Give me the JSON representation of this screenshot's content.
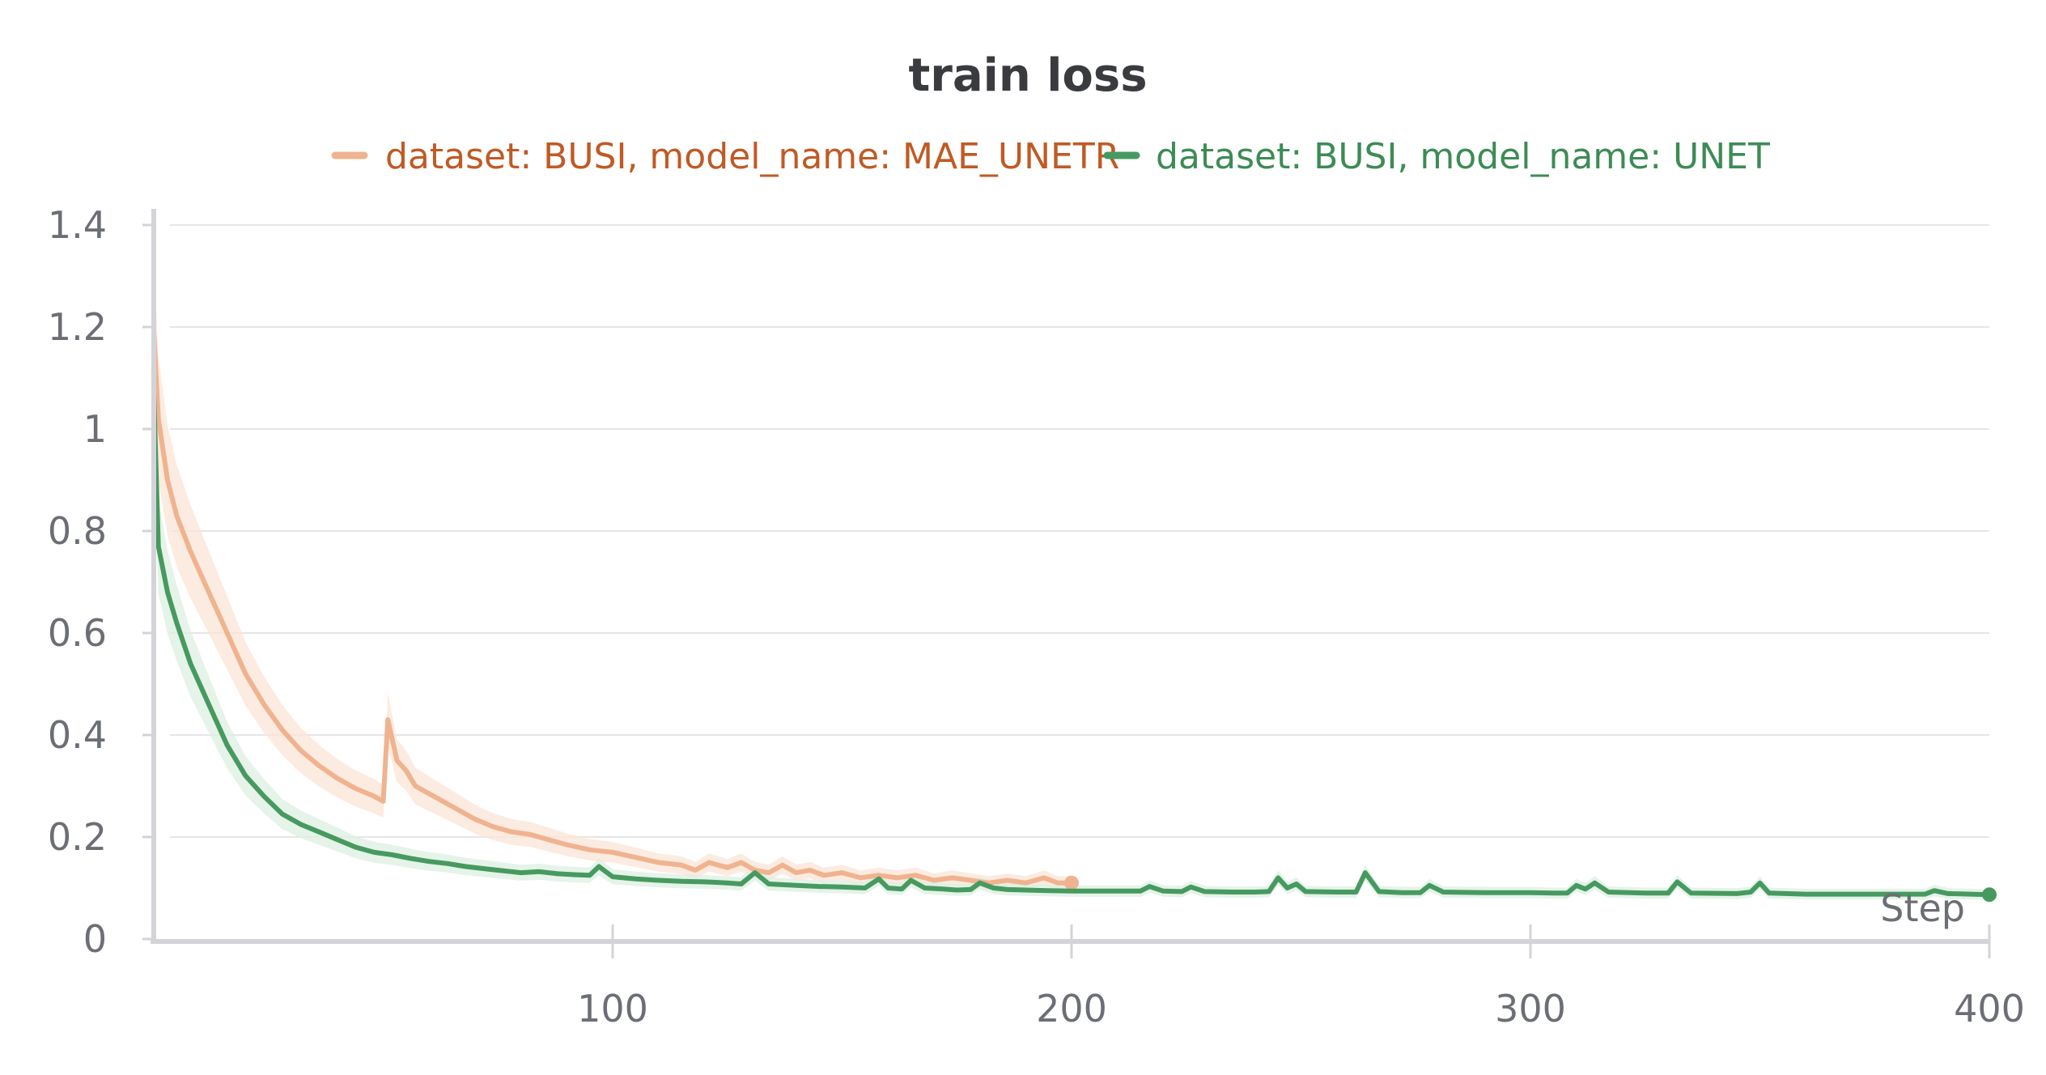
{
  "chart_data": {
    "type": "line",
    "title": "train loss",
    "xlabel": "Step",
    "ylabel": "",
    "xlim": [
      0,
      400
    ],
    "ylim": [
      0,
      1.4
    ],
    "x_ticks": [
      "100",
      "200",
      "300",
      "400"
    ],
    "y_ticks": [
      "0",
      "0.2",
      "0.4",
      "0.6",
      "0.8",
      "1",
      "1.2",
      "1.4"
    ],
    "grid": true,
    "legend_position": "top",
    "series": [
      {
        "name": "dataset: BUSI, model_name: MAE_UNETR",
        "color": "#f0b38f",
        "text_color": "#c05a24",
        "band_color": "#fbe4d6",
        "points": [
          [
            0,
            1.19
          ],
          [
            1,
            1.02
          ],
          [
            3,
            0.9
          ],
          [
            5,
            0.83
          ],
          [
            8,
            0.76
          ],
          [
            12,
            0.68
          ],
          [
            16,
            0.6
          ],
          [
            20,
            0.52
          ],
          [
            24,
            0.46
          ],
          [
            28,
            0.41
          ],
          [
            32,
            0.37
          ],
          [
            36,
            0.34
          ],
          [
            40,
            0.315
          ],
          [
            44,
            0.295
          ],
          [
            48,
            0.28
          ],
          [
            50,
            0.27
          ],
          [
            51,
            0.43
          ],
          [
            53,
            0.35
          ],
          [
            55,
            0.33
          ],
          [
            57,
            0.3
          ],
          [
            60,
            0.285
          ],
          [
            63,
            0.27
          ],
          [
            66,
            0.255
          ],
          [
            70,
            0.235
          ],
          [
            74,
            0.22
          ],
          [
            78,
            0.21
          ],
          [
            82,
            0.205
          ],
          [
            86,
            0.195
          ],
          [
            90,
            0.185
          ],
          [
            95,
            0.175
          ],
          [
            100,
            0.17
          ],
          [
            105,
            0.16
          ],
          [
            110,
            0.15
          ],
          [
            115,
            0.145
          ],
          [
            118,
            0.135
          ],
          [
            121,
            0.15
          ],
          [
            125,
            0.14
          ],
          [
            128,
            0.15
          ],
          [
            131,
            0.135
          ],
          [
            134,
            0.13
          ],
          [
            137,
            0.145
          ],
          [
            140,
            0.13
          ],
          [
            143,
            0.135
          ],
          [
            146,
            0.125
          ],
          [
            150,
            0.13
          ],
          [
            154,
            0.12
          ],
          [
            158,
            0.125
          ],
          [
            162,
            0.12
          ],
          [
            166,
            0.125
          ],
          [
            170,
            0.115
          ],
          [
            174,
            0.12
          ],
          [
            178,
            0.115
          ],
          [
            182,
            0.11
          ],
          [
            186,
            0.115
          ],
          [
            190,
            0.11
          ],
          [
            194,
            0.12
          ],
          [
            197,
            0.11
          ],
          [
            200,
            0.11
          ]
        ]
      },
      {
        "name": "dataset: BUSI, model_name: UNET",
        "color": "#479a5f",
        "text_color": "#3d8b55",
        "band_color": "#dcefe2",
        "points": [
          [
            0,
            1.07
          ],
          [
            1,
            0.77
          ],
          [
            3,
            0.68
          ],
          [
            5,
            0.62
          ],
          [
            8,
            0.54
          ],
          [
            12,
            0.46
          ],
          [
            16,
            0.38
          ],
          [
            20,
            0.32
          ],
          [
            24,
            0.28
          ],
          [
            28,
            0.245
          ],
          [
            32,
            0.225
          ],
          [
            36,
            0.21
          ],
          [
            40,
            0.195
          ],
          [
            44,
            0.18
          ],
          [
            48,
            0.17
          ],
          [
            52,
            0.165
          ],
          [
            56,
            0.158
          ],
          [
            60,
            0.152
          ],
          [
            64,
            0.148
          ],
          [
            68,
            0.142
          ],
          [
            72,
            0.138
          ],
          [
            76,
            0.134
          ],
          [
            80,
            0.13
          ],
          [
            84,
            0.132
          ],
          [
            88,
            0.128
          ],
          [
            92,
            0.126
          ],
          [
            95,
            0.125
          ],
          [
            97,
            0.142
          ],
          [
            100,
            0.122
          ],
          [
            105,
            0.118
          ],
          [
            110,
            0.115
          ],
          [
            115,
            0.113
          ],
          [
            120,
            0.112
          ],
          [
            125,
            0.11
          ],
          [
            128,
            0.108
          ],
          [
            131,
            0.13
          ],
          [
            134,
            0.108
          ],
          [
            140,
            0.105
          ],
          [
            145,
            0.103
          ],
          [
            150,
            0.102
          ],
          [
            155,
            0.1
          ],
          [
            158,
            0.118
          ],
          [
            160,
            0.1
          ],
          [
            163,
            0.098
          ],
          [
            165,
            0.115
          ],
          [
            168,
            0.1
          ],
          [
            172,
            0.098
          ],
          [
            175,
            0.096
          ],
          [
            178,
            0.097
          ],
          [
            180,
            0.11
          ],
          [
            183,
            0.1
          ],
          [
            186,
            0.097
          ],
          [
            190,
            0.096
          ],
          [
            195,
            0.095
          ],
          [
            200,
            0.094
          ],
          [
            210,
            0.094
          ],
          [
            215,
            0.094
          ],
          [
            217,
            0.103
          ],
          [
            220,
            0.094
          ],
          [
            224,
            0.093
          ],
          [
            226,
            0.102
          ],
          [
            229,
            0.093
          ],
          [
            235,
            0.092
          ],
          [
            240,
            0.092
          ],
          [
            243,
            0.093
          ],
          [
            245,
            0.12
          ],
          [
            247,
            0.1
          ],
          [
            249,
            0.108
          ],
          [
            251,
            0.093
          ],
          [
            258,
            0.092
          ],
          [
            262,
            0.092
          ],
          [
            264,
            0.13
          ],
          [
            267,
            0.093
          ],
          [
            272,
            0.091
          ],
          [
            276,
            0.091
          ],
          [
            278,
            0.105
          ],
          [
            281,
            0.092
          ],
          [
            290,
            0.091
          ],
          [
            300,
            0.091
          ],
          [
            305,
            0.09
          ],
          [
            308,
            0.09
          ],
          [
            310,
            0.105
          ],
          [
            312,
            0.098
          ],
          [
            314,
            0.11
          ],
          [
            317,
            0.092
          ],
          [
            325,
            0.09
          ],
          [
            330,
            0.09
          ],
          [
            332,
            0.112
          ],
          [
            335,
            0.09
          ],
          [
            345,
            0.089
          ],
          [
            348,
            0.092
          ],
          [
            350,
            0.11
          ],
          [
            352,
            0.09
          ],
          [
            360,
            0.088
          ],
          [
            370,
            0.088
          ],
          [
            380,
            0.088
          ],
          [
            386,
            0.088
          ],
          [
            388,
            0.095
          ],
          [
            391,
            0.089
          ],
          [
            396,
            0.088
          ],
          [
            400,
            0.087
          ]
        ]
      }
    ]
  }
}
